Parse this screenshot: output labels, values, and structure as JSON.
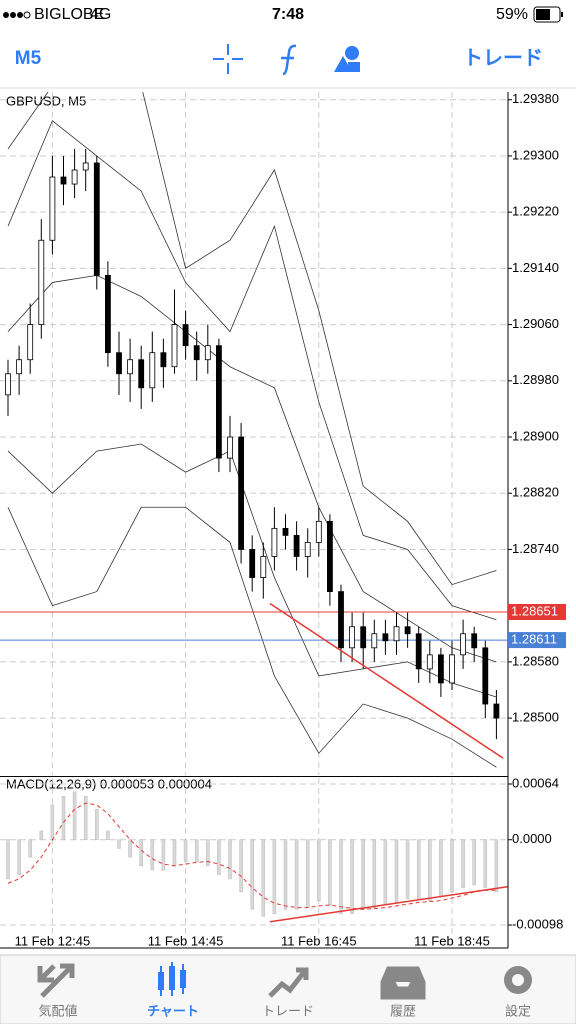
{
  "status": {
    "carrier": "BIGLOBE",
    "network": "4G",
    "time": "7:48",
    "battery": "59%"
  },
  "toolbar": {
    "timeframe": "M5",
    "trade": "トレード"
  },
  "tabs": [
    "気配値",
    "チャート",
    "トレード",
    "履歴",
    "設定"
  ],
  "chart_data": [
    {
      "type": "candlestick",
      "title": "GBPUSD, M5",
      "categories": [
        null,
        null,
        null,
        null,
        "11 Feb 12:45",
        null,
        null,
        null,
        null,
        null,
        null,
        null,
        null,
        null,
        null,
        null,
        "11 Feb 14:45",
        null,
        null,
        null,
        null,
        null,
        null,
        null,
        null,
        null,
        null,
        null,
        "11 Feb 16:45",
        null,
        null,
        null,
        null,
        null,
        null,
        null,
        null,
        null,
        null,
        null,
        "11 Feb 18:45",
        null,
        null,
        null,
        null
      ],
      "candles": [
        [
          1.2896,
          1.2901,
          1.2893,
          1.2899
        ],
        [
          1.2899,
          1.2903,
          1.2896,
          1.2901
        ],
        [
          1.2901,
          1.2909,
          1.2899,
          1.2906
        ],
        [
          1.2906,
          1.2921,
          1.2904,
          1.2918
        ],
        [
          1.2918,
          1.293,
          1.2916,
          1.2927
        ],
        [
          1.2927,
          1.293,
          1.2923,
          1.2926
        ],
        [
          1.2926,
          1.2931,
          1.2924,
          1.2928
        ],
        [
          1.2928,
          1.2931,
          1.2925,
          1.2929
        ],
        [
          1.2929,
          1.293,
          1.2911,
          1.2913
        ],
        [
          1.2913,
          1.2915,
          1.29,
          1.2902
        ],
        [
          1.2902,
          1.2905,
          1.2896,
          1.2899
        ],
        [
          1.2899,
          1.2904,
          1.2895,
          1.2901
        ],
        [
          1.2901,
          1.2903,
          1.2894,
          1.2897
        ],
        [
          1.2897,
          1.2905,
          1.2895,
          1.2902
        ],
        [
          1.2902,
          1.2904,
          1.2897,
          1.29
        ],
        [
          1.29,
          1.2911,
          1.2899,
          1.2906
        ],
        [
          1.2906,
          1.2908,
          1.2901,
          1.2903
        ],
        [
          1.2903,
          1.2905,
          1.2898,
          1.2901
        ],
        [
          1.2901,
          1.2906,
          1.2899,
          1.2903
        ],
        [
          1.2903,
          1.2904,
          1.2885,
          1.2887
        ],
        [
          1.2887,
          1.2893,
          1.2885,
          1.289
        ],
        [
          1.289,
          1.2892,
          1.2872,
          1.2874
        ],
        [
          1.2874,
          1.2876,
          1.2868,
          1.287
        ],
        [
          1.287,
          1.2875,
          1.2867,
          1.2873
        ],
        [
          1.2873,
          1.288,
          1.2871,
          1.2877
        ],
        [
          1.2877,
          1.2879,
          1.2874,
          1.2876
        ],
        [
          1.2876,
          1.2878,
          1.2871,
          1.2873
        ],
        [
          1.2873,
          1.2877,
          1.287,
          1.2875
        ],
        [
          1.2875,
          1.288,
          1.2873,
          1.2878
        ],
        [
          1.2878,
          1.2879,
          1.2866,
          1.2868
        ],
        [
          1.2868,
          1.2869,
          1.2858,
          1.286
        ],
        [
          1.286,
          1.2865,
          1.2858,
          1.2863
        ],
        [
          1.2863,
          1.2865,
          1.2857,
          1.286
        ],
        [
          1.286,
          1.2864,
          1.2858,
          1.2862
        ],
        [
          1.2862,
          1.2864,
          1.2859,
          1.2861
        ],
        [
          1.2861,
          1.2865,
          1.2859,
          1.2863
        ],
        [
          1.2863,
          1.2865,
          1.286,
          1.2862
        ],
        [
          1.2862,
          1.2863,
          1.2855,
          1.2857
        ],
        [
          1.2857,
          1.2861,
          1.2855,
          1.2859
        ],
        [
          1.2859,
          1.286,
          1.2853,
          1.2855
        ],
        [
          1.2855,
          1.2861,
          1.2854,
          1.2859
        ],
        [
          1.2859,
          1.2864,
          1.2857,
          1.2862
        ],
        [
          1.2862,
          1.2863,
          1.2858,
          1.286
        ],
        [
          1.286,
          1.2861,
          1.285,
          1.2852
        ],
        [
          1.2852,
          1.2854,
          1.2847,
          1.285
        ]
      ],
      "bands": [
        {
          "x": [
            0,
            4,
            8,
            12,
            16,
            20,
            24,
            28,
            32,
            36,
            40,
            44
          ],
          "values": [
            1.2931,
            1.294,
            1.2942,
            1.294,
            1.2914,
            1.2918,
            1.2928,
            1.2908,
            1.2883,
            1.2878,
            1.2869,
            1.2871
          ]
        },
        {
          "x": [
            0,
            4,
            8,
            12,
            16,
            20,
            24,
            28,
            32,
            36,
            40,
            44
          ],
          "values": [
            1.292,
            1.2935,
            1.293,
            1.2925,
            1.2912,
            1.2905,
            1.292,
            1.2895,
            1.2876,
            1.2874,
            1.2866,
            1.2864
          ]
        },
        {
          "x": [
            0,
            4,
            8,
            12,
            16,
            20,
            24,
            28,
            32,
            36,
            40,
            44
          ],
          "values": [
            1.2905,
            1.2912,
            1.2913,
            1.291,
            1.2905,
            1.29,
            1.2897,
            1.288,
            1.2868,
            1.2864,
            1.286,
            1.2858
          ]
        },
        {
          "x": [
            0,
            4,
            8,
            12,
            16,
            20,
            24,
            28,
            32,
            36,
            40,
            44
          ],
          "values": [
            1.2888,
            1.2882,
            1.2888,
            1.2889,
            1.2885,
            1.2888,
            1.287,
            1.2856,
            1.2857,
            1.2858,
            1.2855,
            1.2853
          ]
        },
        {
          "x": [
            0,
            4,
            8,
            12,
            16,
            20,
            24,
            28,
            32,
            36,
            40,
            44
          ],
          "values": [
            1.288,
            1.2866,
            1.2868,
            1.288,
            1.288,
            1.2875,
            1.2856,
            1.2845,
            1.2852,
            1.285,
            1.2847,
            1.2843
          ]
        }
      ],
      "lines": [
        {
          "value": 1.28651,
          "color": "#e53935"
        },
        {
          "value": 1.28611,
          "color": "#4a7fd6"
        }
      ],
      "trendline": {
        "x": [
          23.6,
          44.6
        ],
        "values": [
          1.28663,
          1.28443
        ],
        "color": "#e53935"
      },
      "ylim": [
        1.28419,
        1.29391
      ],
      "yticks": [
        {
          "value": 1.2938,
          "label": "1.29380"
        },
        {
          "value": 1.293,
          "label": "1.29300"
        },
        {
          "value": 1.2922,
          "label": "1.29220"
        },
        {
          "value": 1.2914,
          "label": "1.29140"
        },
        {
          "value": 1.2906,
          "label": "1.29060"
        },
        {
          "value": 1.2898,
          "label": "1.28980"
        },
        {
          "value": 1.289,
          "label": "1.28900"
        },
        {
          "value": 1.2882,
          "label": "1.28820"
        },
        {
          "value": 1.2874,
          "label": "1.28740"
        },
        {
          "value": 1.2858,
          "label": "1.28580"
        },
        {
          "value": 1.285,
          "label": "1.28500"
        }
      ],
      "grid": true
    },
    {
      "type": "macd",
      "title": "MACD(12,26,9) 0.000053 0.000004",
      "histogram": [
        -0.00045,
        -0.0004,
        -0.0002,
        0.0001,
        0.0004,
        0.0005,
        0.00055,
        0.0005,
        0.00035,
        0.0001,
        -0.0001,
        -0.0002,
        -0.0003,
        -0.00035,
        -0.00035,
        -0.0003,
        -0.00025,
        -0.00025,
        -0.0003,
        -0.0004,
        -0.00045,
        -0.0006,
        -0.0008,
        -0.00088,
        -0.00085,
        -0.0008,
        -0.0008,
        -0.00078,
        -0.0007,
        -0.00075,
        -0.00085,
        -0.00085,
        -0.0008,
        -0.00078,
        -0.00075,
        -0.00072,
        -0.00068,
        -0.00068,
        -0.0007,
        -0.00065,
        -0.0006,
        -0.00055,
        -0.00052,
        -0.00055,
        -0.0006
      ],
      "signal": [
        -0.0005,
        -0.00045,
        -0.00035,
        -0.0002,
        0,
        0.0002,
        0.00035,
        0.00042,
        0.0004,
        0.0003,
        0.00015,
        0,
        -0.00012,
        -0.00022,
        -0.00028,
        -0.0003,
        -0.00028,
        -0.00026,
        -0.00025,
        -0.00028,
        -0.00033,
        -0.00042,
        -0.00055,
        -0.00066,
        -0.00073,
        -0.00076,
        -0.00078,
        -0.00078,
        -0.00076,
        -0.00075,
        -0.00077,
        -0.00079,
        -0.0008,
        -0.00079,
        -0.00078,
        -0.00076,
        -0.00074,
        -0.00072,
        -0.00071,
        -0.0007,
        -0.00067,
        -0.00064,
        -0.0006,
        -0.00058,
        -0.00058
      ],
      "signal_color": "#e53935",
      "trendline": {
        "x": [
          23.6,
          45
        ],
        "values": [
          -0.000942,
          -0.00054
        ],
        "color": "#e53935"
      },
      "ylim": [
        -0.001244,
        0.000709
      ],
      "yticks": [
        0.00064,
        {
          "value": 0,
          "label": "0.0000"
        },
        -0.00098
      ]
    }
  ]
}
